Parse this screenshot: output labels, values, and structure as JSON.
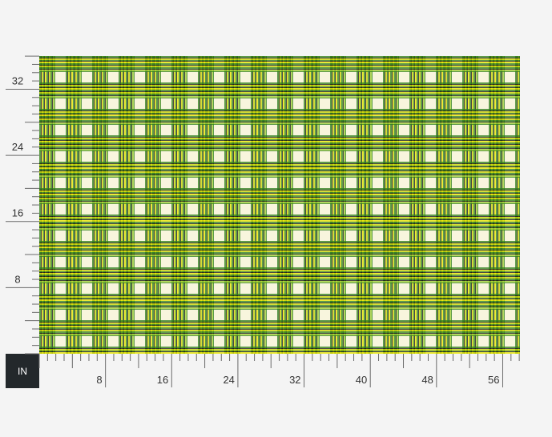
{
  "ruler": {
    "unit": "IN",
    "x_labels": [
      8,
      16,
      24,
      32,
      40,
      48,
      56
    ],
    "y_labels": [
      8,
      16,
      24,
      32
    ]
  }
}
